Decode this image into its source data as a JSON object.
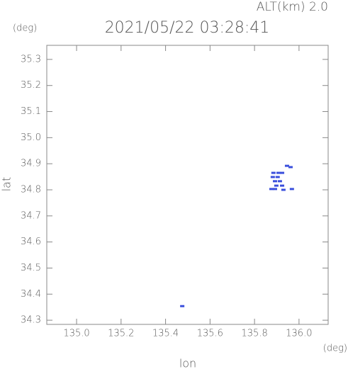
{
  "chart_data": {
    "type": "scatter",
    "title": "2021/05/22 03:28:41",
    "annotation": "ALT(km) 2.0",
    "y_unit": "(deg)",
    "x_unit": "(deg)",
    "ylabel": "lat",
    "xlabel": "lon",
    "xlim": [
      134.866,
      136.131
    ],
    "ylim": [
      34.284,
      35.354
    ],
    "xticks": [
      {
        "value": 135.0,
        "label": "135.0"
      },
      135.2,
      135.4,
      135.6,
      135.8,
      {
        "value": 136.0,
        "label": "136.0"
      }
    ],
    "yticks": [
      34.3,
      34.4,
      34.5,
      34.6,
      34.7,
      34.8,
      34.9,
      {
        "value": 35.0,
        "label": "35.0"
      },
      35.1,
      35.2,
      35.3
    ],
    "grid": false,
    "series": [
      {
        "color": "#3a4fdc",
        "x": [
          135.946,
          135.962,
          135.885,
          135.908,
          135.924,
          135.882,
          135.904,
          135.914,
          135.892,
          135.898,
          135.924,
          135.876,
          135.892,
          135.93,
          135.968,
          135.475
        ],
        "values": [
          34.892,
          34.887,
          34.865,
          34.865,
          34.865,
          34.849,
          34.849,
          34.833,
          34.833,
          34.816,
          34.816,
          34.803,
          34.803,
          34.8,
          34.803,
          34.354
        ]
      }
    ]
  }
}
